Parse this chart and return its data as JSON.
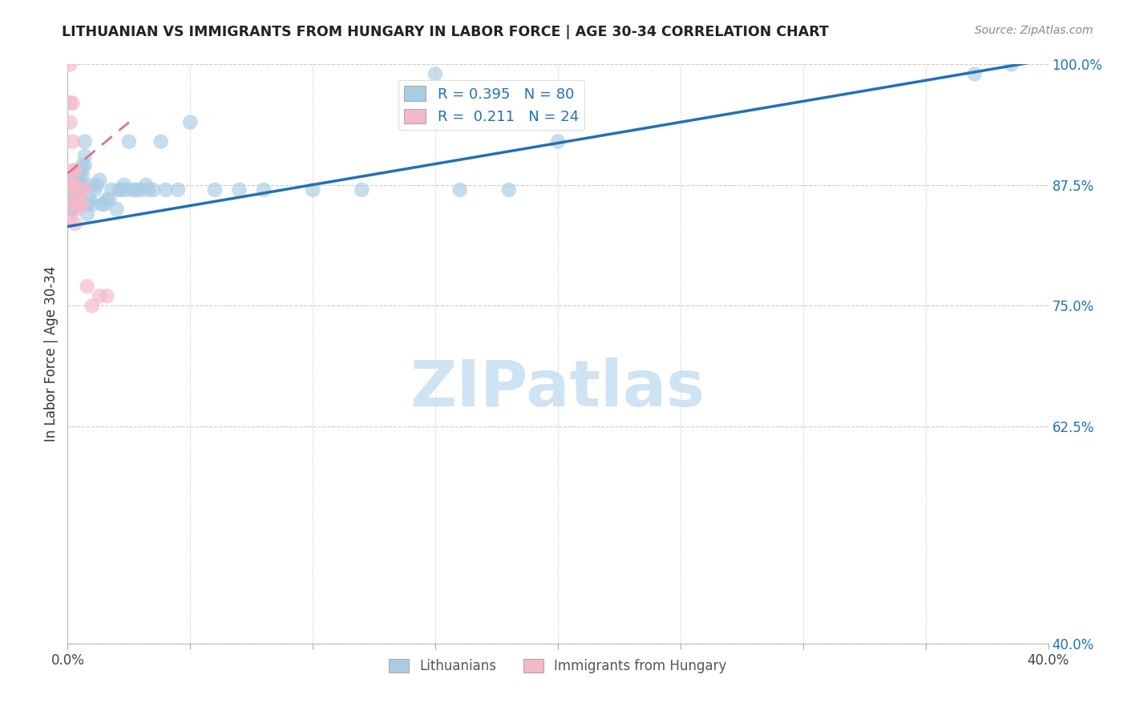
{
  "title": "LITHUANIAN VS IMMIGRANTS FROM HUNGARY IN LABOR FORCE | AGE 30-34 CORRELATION CHART",
  "source": "Source: ZipAtlas.com",
  "ylabel": "In Labor Force | Age 30-34",
  "xlim": [
    0.0,
    0.4
  ],
  "ylim": [
    0.4,
    1.0
  ],
  "xticks": [
    0.0,
    0.05,
    0.1,
    0.15,
    0.2,
    0.25,
    0.3,
    0.35,
    0.4
  ],
  "yticks": [
    0.4,
    0.625,
    0.75,
    0.875,
    1.0
  ],
  "yticklabels": [
    "40.0%",
    "62.5%",
    "75.0%",
    "87.5%",
    "100.0%"
  ],
  "blue_R": 0.395,
  "blue_N": 80,
  "pink_R": 0.211,
  "pink_N": 24,
  "blue_color": "#a8cce4",
  "pink_color": "#f4b8c8",
  "blue_line_color": "#2171b5",
  "pink_line_color": "#e07090",
  "watermark_color": "#c8dff0",
  "legend_labels": [
    "Lithuanians",
    "Immigrants from Hungary"
  ],
  "blue_scatter_x": [
    0.001,
    0.001,
    0.001,
    0.001,
    0.001,
    0.001,
    0.001,
    0.001,
    0.001,
    0.001,
    0.001,
    0.001,
    0.002,
    0.002,
    0.002,
    0.002,
    0.002,
    0.002,
    0.002,
    0.002,
    0.002,
    0.003,
    0.003,
    0.003,
    0.003,
    0.003,
    0.004,
    0.004,
    0.004,
    0.004,
    0.005,
    0.005,
    0.005,
    0.005,
    0.006,
    0.006,
    0.006,
    0.007,
    0.007,
    0.007,
    0.008,
    0.008,
    0.009,
    0.01,
    0.01,
    0.011,
    0.012,
    0.013,
    0.014,
    0.015,
    0.016,
    0.017,
    0.018,
    0.02,
    0.021,
    0.022,
    0.023,
    0.024,
    0.025,
    0.027,
    0.028,
    0.03,
    0.032,
    0.033,
    0.035,
    0.038,
    0.04,
    0.045,
    0.05,
    0.06,
    0.07,
    0.08,
    0.1,
    0.12,
    0.15,
    0.16,
    0.18,
    0.2,
    0.37,
    0.385
  ],
  "blue_scatter_y": [
    0.875,
    0.875,
    0.875,
    0.875,
    0.88,
    0.88,
    0.87,
    0.87,
    0.865,
    0.86,
    0.855,
    0.85,
    0.88,
    0.875,
    0.875,
    0.87,
    0.865,
    0.86,
    0.855,
    0.85,
    0.85,
    0.88,
    0.875,
    0.87,
    0.865,
    0.86,
    0.885,
    0.88,
    0.875,
    0.87,
    0.89,
    0.885,
    0.875,
    0.87,
    0.895,
    0.885,
    0.875,
    0.92,
    0.905,
    0.895,
    0.855,
    0.845,
    0.86,
    0.875,
    0.855,
    0.87,
    0.875,
    0.88,
    0.855,
    0.855,
    0.86,
    0.86,
    0.87,
    0.85,
    0.87,
    0.87,
    0.875,
    0.87,
    0.92,
    0.87,
    0.87,
    0.87,
    0.875,
    0.87,
    0.87,
    0.92,
    0.87,
    0.87,
    0.94,
    0.87,
    0.87,
    0.87,
    0.87,
    0.87,
    0.99,
    0.87,
    0.87,
    0.92,
    0.99,
    1.0
  ],
  "pink_scatter_x": [
    0.001,
    0.001,
    0.001,
    0.001,
    0.001,
    0.002,
    0.002,
    0.002,
    0.002,
    0.002,
    0.003,
    0.003,
    0.003,
    0.003,
    0.004,
    0.004,
    0.005,
    0.005,
    0.006,
    0.007,
    0.008,
    0.01,
    0.013,
    0.016
  ],
  "pink_scatter_y": [
    1.0,
    0.96,
    0.94,
    0.875,
    0.84,
    0.96,
    0.92,
    0.89,
    0.875,
    0.855,
    0.89,
    0.875,
    0.86,
    0.835,
    0.87,
    0.85,
    0.87,
    0.855,
    0.855,
    0.87,
    0.77,
    0.75,
    0.76,
    0.76
  ],
  "blue_trend_x": [
    0.0,
    0.4
  ],
  "blue_trend_y": [
    0.832,
    1.005
  ],
  "pink_trend_x": [
    0.0,
    0.025
  ],
  "pink_trend_y": [
    0.887,
    0.94
  ]
}
